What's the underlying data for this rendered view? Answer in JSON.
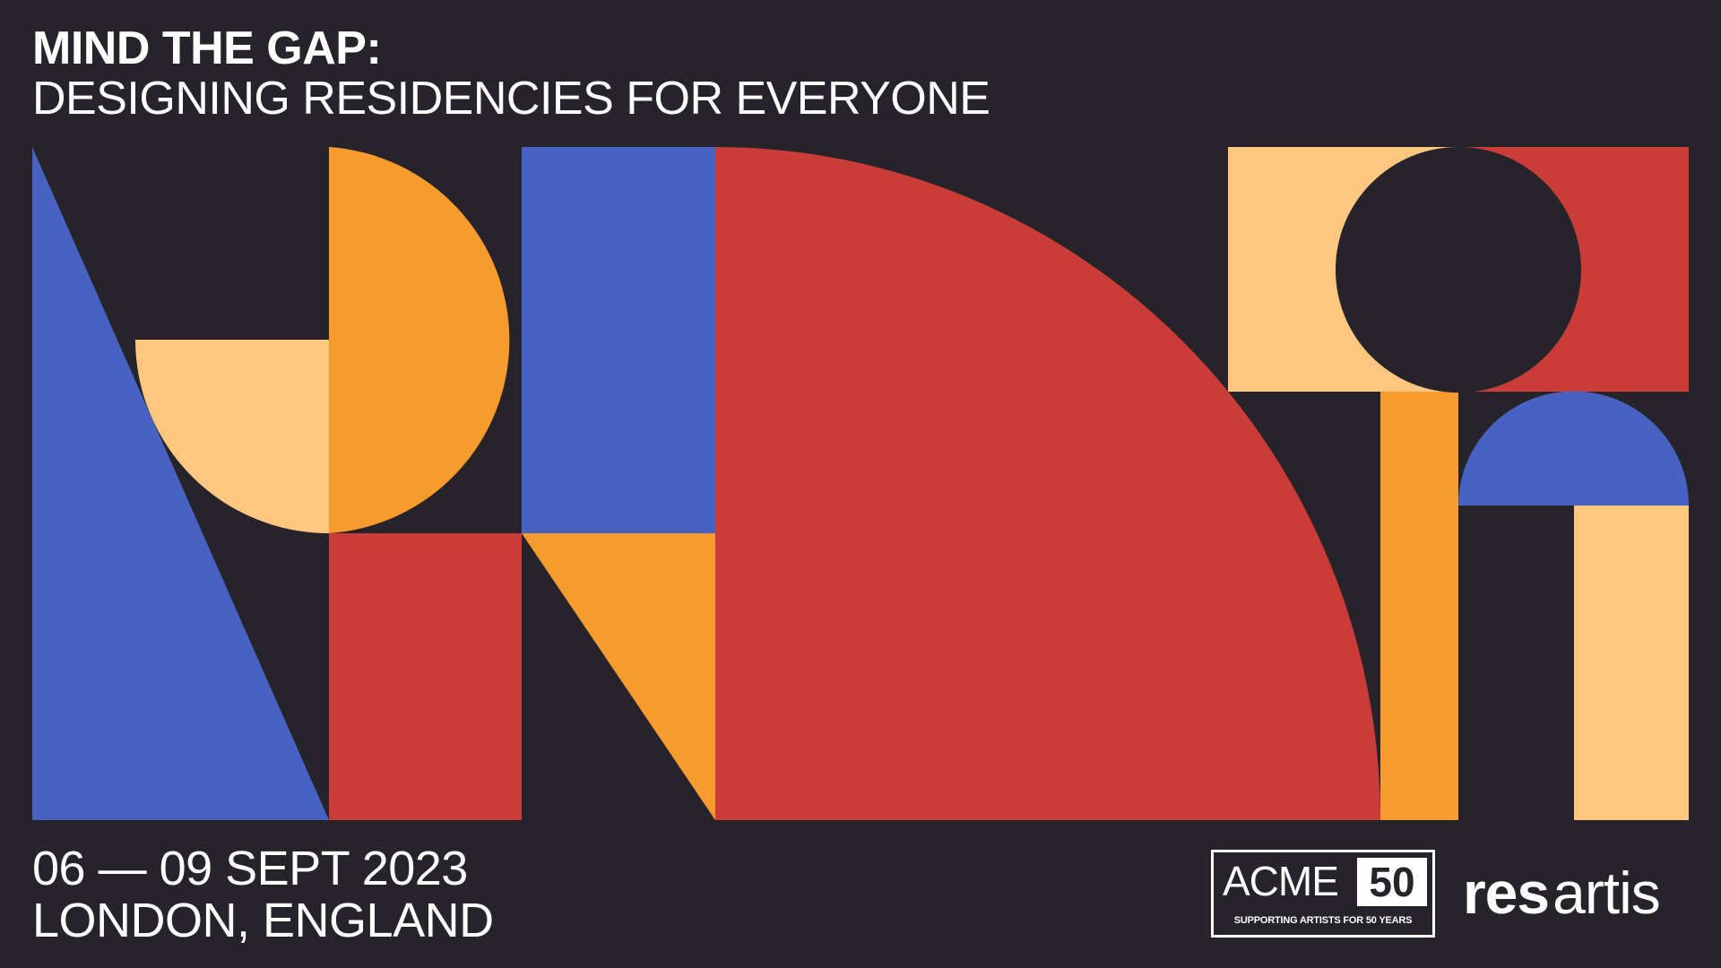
{
  "title": {
    "line1": "MIND THE GAP:",
    "line2": "DESIGNING RESIDENCIES FOR EVERYONE"
  },
  "event": {
    "dates": "06 — 09 SEPT 2023",
    "location": "LONDON, ENGLAND"
  },
  "logos": {
    "acme_word": "ACME",
    "acme_number": "50",
    "acme_tagline": "SUPPORTING ARTISTS FOR 50 YEARS",
    "resartis_res": "res",
    "resartis_artis": "artis"
  },
  "colors": {
    "background": "#26232a",
    "blue": "#4762c0",
    "orange": "#f79b2f",
    "light_orange": "#fec67e",
    "red": "#c93c37"
  }
}
